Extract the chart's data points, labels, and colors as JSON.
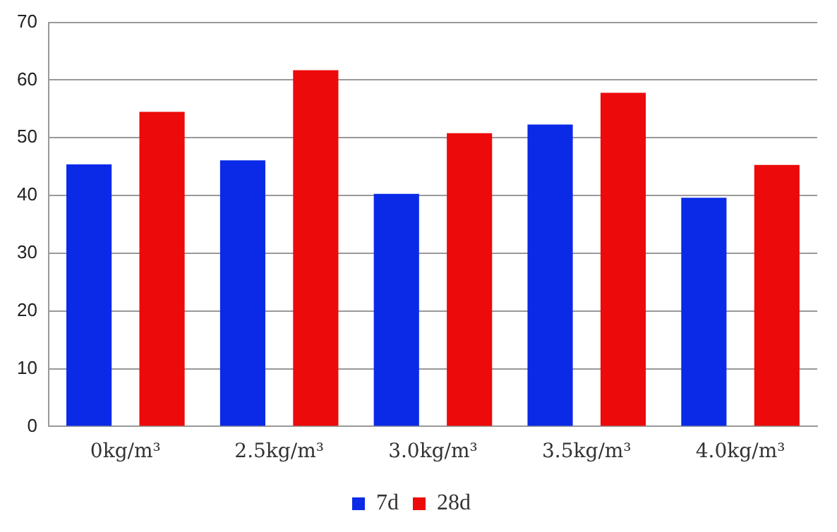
{
  "chart_data": {
    "type": "bar",
    "categories": [
      "0kg/m³",
      "2.5kg/m³",
      "3.0kg/m³",
      "3.5kg/m³",
      "4.0kg/m³"
    ],
    "series": [
      {
        "name": "7d",
        "color": "#0a2ae8",
        "values": [
          45.4,
          46.1,
          40.3,
          52.3,
          39.6
        ]
      },
      {
        "name": "28d",
        "color": "#ec0a0a",
        "values": [
          54.5,
          61.7,
          50.8,
          57.8,
          45.3
        ]
      }
    ],
    "ylim": [
      0,
      70
    ],
    "yticks": [
      0,
      10,
      20,
      30,
      40,
      50,
      60,
      70
    ],
    "grid": "y",
    "legend": "bottom"
  }
}
